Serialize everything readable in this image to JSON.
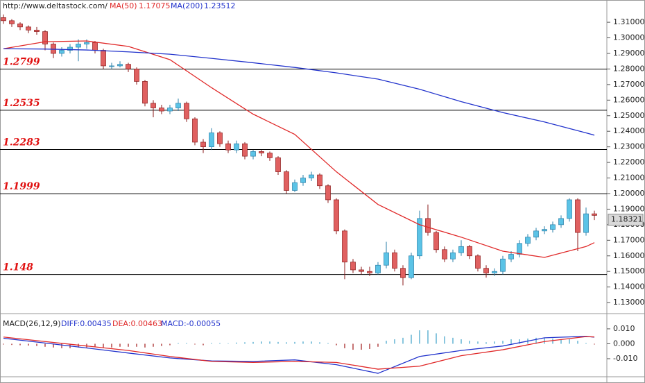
{
  "chart_data": [
    {
      "type": "candlestick",
      "source": "http://www.deltastock.com/",
      "up_color": "#5bc3e6",
      "down_color": "#e06060",
      "open": [
        1.313,
        1.311,
        1.309,
        1.307,
        1.305,
        1.304,
        1.296,
        1.29,
        1.292,
        1.294,
        1.296,
        1.297,
        1.292,
        1.282,
        1.282,
        1.283,
        1.28,
        1.272,
        1.258,
        1.255,
        1.253,
        1.255,
        1.258,
        1.248,
        1.233,
        1.23,
        1.239,
        1.232,
        1.228,
        1.232,
        1.224,
        1.227,
        1.226,
        1.223,
        1.214,
        1.202,
        1.207,
        1.21,
        1.212,
        1.205,
        1.196,
        1.176,
        1.156,
        1.151,
        1.15,
        1.149,
        1.154,
        1.162,
        1.152,
        1.146,
        1.16,
        1.184,
        1.175,
        1.164,
        1.158,
        1.162,
        1.166,
        1.16,
        1.152,
        1.149,
        1.15,
        1.158,
        1.161,
        1.168,
        1.172,
        1.176,
        1.177,
        1.18,
        1.184,
        1.196,
        1.175,
        1.187
      ],
      "high": [
        1.315,
        1.312,
        1.31,
        1.308,
        1.307,
        1.305,
        1.297,
        1.294,
        1.296,
        1.299,
        1.299,
        1.298,
        1.293,
        1.284,
        1.285,
        1.284,
        1.281,
        1.273,
        1.26,
        1.257,
        1.257,
        1.261,
        1.259,
        1.249,
        1.235,
        1.242,
        1.24,
        1.234,
        1.234,
        1.233,
        1.228,
        1.228,
        1.227,
        1.224,
        1.215,
        1.209,
        1.212,
        1.214,
        1.213,
        1.206,
        1.197,
        1.177,
        1.158,
        1.153,
        1.153,
        1.156,
        1.169,
        1.164,
        1.154,
        1.162,
        1.189,
        1.193,
        1.176,
        1.166,
        1.164,
        1.17,
        1.167,
        1.161,
        1.154,
        1.152,
        1.16,
        1.163,
        1.17,
        1.174,
        1.178,
        1.179,
        1.182,
        1.186,
        1.197,
        1.197,
        1.191,
        1.189
      ],
      "low": [
        1.309,
        1.307,
        1.305,
        1.303,
        1.302,
        1.292,
        1.287,
        1.288,
        1.29,
        1.285,
        1.293,
        1.29,
        1.28,
        1.28,
        1.281,
        1.278,
        1.27,
        1.256,
        1.249,
        1.251,
        1.251,
        1.253,
        1.246,
        1.231,
        1.226,
        1.228,
        1.23,
        1.226,
        1.226,
        1.222,
        1.222,
        1.224,
        1.221,
        1.212,
        1.2,
        1.201,
        1.205,
        1.208,
        1.203,
        1.194,
        1.174,
        1.145,
        1.149,
        1.148,
        1.147,
        1.148,
        1.152,
        1.15,
        1.141,
        1.145,
        1.158,
        1.173,
        1.162,
        1.156,
        1.156,
        1.16,
        1.158,
        1.15,
        1.146,
        1.147,
        1.148,
        1.156,
        1.159,
        1.166,
        1.17,
        1.174,
        1.175,
        1.178,
        1.182,
        1.163,
        1.173,
        1.183
      ],
      "close": [
        1.311,
        1.309,
        1.307,
        1.305,
        1.304,
        1.296,
        1.29,
        1.292,
        1.294,
        1.296,
        1.297,
        1.292,
        1.282,
        1.282,
        1.283,
        1.28,
        1.272,
        1.258,
        1.255,
        1.253,
        1.255,
        1.258,
        1.248,
        1.233,
        1.23,
        1.239,
        1.232,
        1.228,
        1.232,
        1.224,
        1.227,
        1.226,
        1.223,
        1.214,
        1.202,
        1.207,
        1.21,
        1.212,
        1.205,
        1.196,
        1.176,
        1.156,
        1.151,
        1.15,
        1.149,
        1.154,
        1.162,
        1.152,
        1.146,
        1.16,
        1.184,
        1.175,
        1.164,
        1.158,
        1.162,
        1.166,
        1.16,
        1.152,
        1.149,
        1.15,
        1.158,
        1.161,
        1.168,
        1.172,
        1.176,
        1.177,
        1.18,
        1.184,
        1.196,
        1.175,
        1.187,
        1.186
      ],
      "series": [
        {
          "name": "MA(50)",
          "current": 1.17075,
          "color": "#e02828",
          "x": [
            0,
            5,
            10,
            15,
            20,
            25,
            30,
            35,
            40,
            45,
            50,
            55,
            60,
            65,
            70,
            71
          ],
          "values": [
            1.293,
            1.2975,
            1.298,
            1.2945,
            1.286,
            1.268,
            1.251,
            1.238,
            1.214,
            1.193,
            1.18,
            1.172,
            1.163,
            1.159,
            1.166,
            1.1685
          ]
        },
        {
          "name": "MA(200)",
          "current": 1.23512,
          "color": "#2233cc",
          "x": [
            0,
            5,
            10,
            15,
            20,
            25,
            30,
            35,
            40,
            45,
            50,
            55,
            60,
            65,
            70,
            71
          ],
          "values": [
            1.293,
            1.2928,
            1.2922,
            1.291,
            1.2895,
            1.2868,
            1.284,
            1.281,
            1.2775,
            1.2735,
            1.267,
            1.259,
            1.252,
            1.246,
            1.239,
            1.2375
          ]
        }
      ],
      "levels": [
        1.2799,
        1.2535,
        1.2283,
        1.1999,
        1.148
      ],
      "last_price": 1.18321,
      "ylim": [
        1.1238,
        1.3243
      ],
      "yticks": [
        {
          "value": 1.13,
          "label": "1.13000"
        },
        {
          "value": 1.14,
          "label": "1.14000"
        },
        {
          "value": 1.15,
          "label": "1.15000"
        },
        {
          "value": 1.16,
          "label": "1.16000"
        },
        {
          "value": 1.17,
          "label": "1.17000"
        },
        {
          "value": 1.18,
          "label": "1.18000"
        },
        {
          "value": 1.19,
          "label": "1.19000"
        },
        {
          "value": 1.2,
          "label": "1.20000"
        },
        {
          "value": 1.21,
          "label": "1.21000"
        },
        {
          "value": 1.22,
          "label": "1.22000"
        },
        {
          "value": 1.23,
          "label": "1.23000"
        },
        {
          "value": 1.24,
          "label": "1.24000"
        },
        {
          "value": 1.25,
          "label": "1.25000"
        },
        {
          "value": 1.26,
          "label": "1.26000"
        },
        {
          "value": 1.27,
          "label": "1.27000"
        },
        {
          "value": 1.28,
          "label": "1.28000"
        },
        {
          "value": 1.29,
          "label": "1.29000"
        },
        {
          "value": 1.3,
          "label": "1.30000"
        },
        {
          "value": 1.31,
          "label": "1.31000"
        }
      ]
    },
    {
      "type": "macd",
      "title": "MACD(26,12,9)",
      "readouts": [
        "DIFF:0.00435",
        "DEA:0.00463",
        "MACD:-0.00055"
      ],
      "histogram": {
        "up_color": "#3a9fc8",
        "down_color": "#a01818",
        "values": [
          -0.0005,
          -0.0008,
          -0.001,
          -0.0012,
          -0.0015,
          -0.002,
          -0.0025,
          -0.003,
          -0.003,
          -0.0025,
          -0.0025,
          -0.002,
          -0.0025,
          -0.0025,
          -0.002,
          -0.002,
          -0.002,
          -0.0025,
          -0.002,
          -0.0015,
          -0.001,
          0.0005,
          0.0005,
          -0.0005,
          -0.001,
          0.0005,
          0.0005,
          0.0003,
          0.0008,
          0.001,
          0.0012,
          0.0015,
          0.0015,
          0.0012,
          0.001,
          0.0012,
          0.0015,
          0.0015,
          0.001,
          0.0005,
          -0.001,
          -0.003,
          -0.004,
          -0.004,
          -0.0035,
          -0.002,
          0.002,
          0.003,
          0.004,
          0.006,
          0.009,
          0.009,
          0.007,
          0.005,
          0.004,
          0.003,
          0.002,
          0.0015,
          0.001,
          0.0015,
          0.002,
          0.003,
          0.003,
          0.0035,
          0.004,
          0.004,
          0.0035,
          0.003,
          0.003,
          0.002,
          0.0005,
          -0.0005
        ]
      },
      "series": [
        {
          "name": "DIFF",
          "color": "#2233cc",
          "x": [
            0,
            5,
            10,
            15,
            20,
            25,
            30,
            35,
            40,
            45,
            50,
            55,
            60,
            65,
            70,
            71
          ],
          "values": [
            0.0037,
            0.0005,
            -0.0028,
            -0.0062,
            -0.0095,
            -0.0115,
            -0.0118,
            -0.0108,
            -0.014,
            -0.0198,
            -0.0085,
            -0.0045,
            -0.0015,
            0.004,
            0.005,
            0.0044
          ]
        },
        {
          "name": "DEA",
          "color": "#e02828",
          "x": [
            0,
            5,
            10,
            15,
            20,
            25,
            30,
            35,
            40,
            45,
            50,
            55,
            60,
            65,
            70,
            71
          ],
          "values": [
            0.0045,
            0.0015,
            -0.0015,
            -0.0045,
            -0.0085,
            -0.0118,
            -0.0125,
            -0.0118,
            -0.0125,
            -0.017,
            -0.015,
            -0.008,
            -0.004,
            0.0015,
            0.0048,
            0.0046
          ]
        }
      ],
      "ylim": [
        -0.0207,
        0.0174
      ],
      "yticks": [
        {
          "value": -0.01,
          "label": "-0.010"
        },
        {
          "value": 0,
          "label": "0.000"
        },
        {
          "value": 0.01,
          "label": "0.010"
        }
      ]
    }
  ]
}
